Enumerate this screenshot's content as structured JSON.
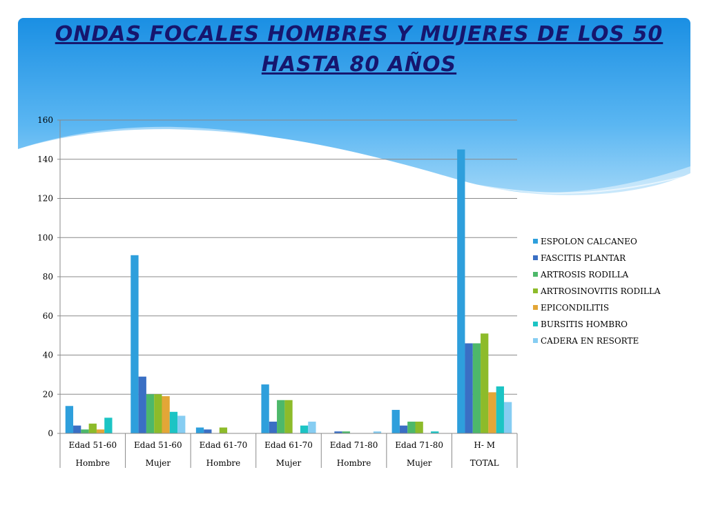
{
  "title": "ONDAS FOCALES  HOMBRES Y MUJERES  DE LOS 50  HASTA  80  AÑOS",
  "chart_data": {
    "type": "bar",
    "title": "ONDAS FOCALES  HOMBRES Y MUJERES  DE LOS 50  HASTA  80  AÑOS",
    "categories": [
      {
        "label": "Edad 51-60",
        "group": "Hombre"
      },
      {
        "label": "Edad 51-60",
        "group": "Mujer"
      },
      {
        "label": "Edad 61-70",
        "group": "Hombre"
      },
      {
        "label": "Edad 61-70",
        "group": "Mujer"
      },
      {
        "label": "Edad 71-80",
        "group": "Hombre"
      },
      {
        "label": "Edad 71-80",
        "group": "Mujer"
      },
      {
        "label": "H- M",
        "group": "TOTAL"
      }
    ],
    "series": [
      {
        "name": "ESPOLON CALCANEO",
        "color": "#2e9fdc",
        "values": [
          14,
          91,
          3,
          25,
          0,
          12,
          145
        ]
      },
      {
        "name": "FASCITIS PLANTAR",
        "color": "#3a6fc4",
        "values": [
          4,
          29,
          2,
          6,
          1,
          4,
          46
        ]
      },
      {
        "name": "ARTROSIS RODILLA",
        "color": "#4db86a",
        "values": [
          2,
          20,
          0,
          17,
          1,
          6,
          46
        ]
      },
      {
        "name": "ARTROSINOVITIS RODILLA",
        "color": "#8dbb2a",
        "values": [
          5,
          20,
          3,
          17,
          0,
          6,
          51
        ]
      },
      {
        "name": "EPICONDILITIS",
        "color": "#e3a637",
        "values": [
          2,
          19,
          0,
          0,
          0,
          0,
          21
        ]
      },
      {
        "name": "BURSITIS HOMBRO",
        "color": "#1cc4c4",
        "values": [
          8,
          11,
          0,
          4,
          0,
          1,
          24
        ]
      },
      {
        "name": "CADERA EN RESORTE",
        "color": "#86cdf2",
        "values": [
          0,
          9,
          0,
          6,
          1,
          0,
          16
        ]
      }
    ],
    "ylim": [
      0,
      160
    ],
    "yticks": [
      "0",
      "20",
      "40",
      "60",
      "80",
      "100",
      "120",
      "140",
      "160"
    ],
    "grid": true,
    "legend": "right"
  }
}
